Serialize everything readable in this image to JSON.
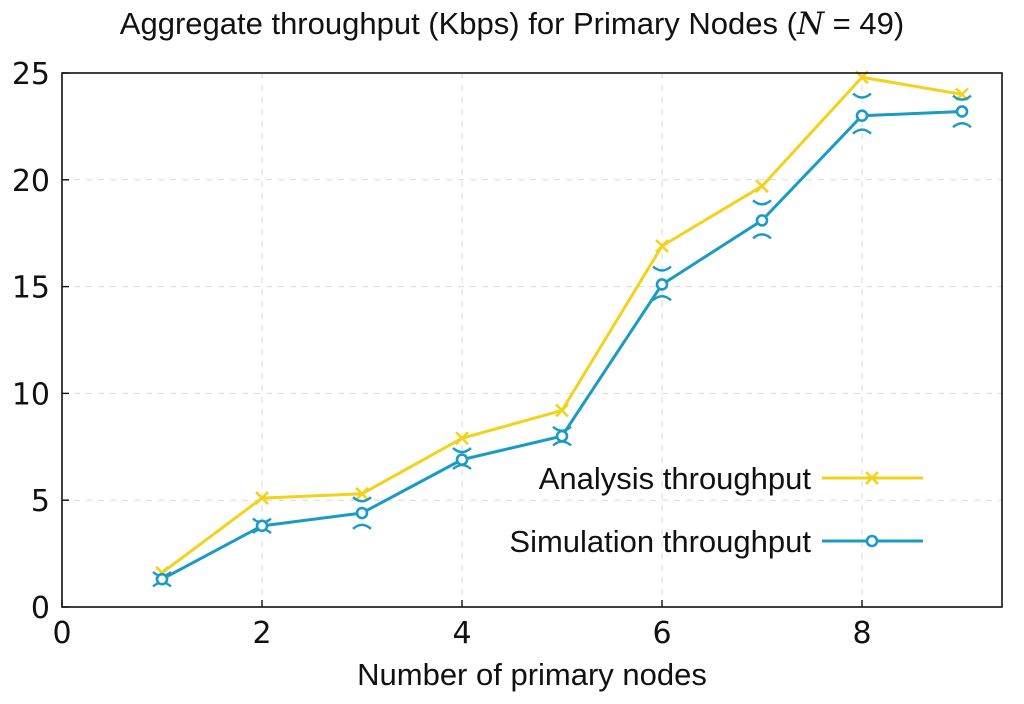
{
  "chart_data": {
    "type": "line",
    "title_prefix": "Aggregate throughput (Kbps) for Primary Nodes (",
    "title_var": "N",
    "title_eq": " = 49)",
    "xlabel": "Number of primary nodes",
    "ylabel": "",
    "xlim": [
      0,
      9.4
    ],
    "ylim": [
      0,
      25
    ],
    "xticks": [
      "0",
      "2",
      "4",
      "6",
      "8"
    ],
    "yticks": [
      "0",
      "5",
      "10",
      "15",
      "20",
      "25"
    ],
    "grid": true,
    "legend_position": "lower-right",
    "series": [
      {
        "name": "Analysis throughput",
        "color": "#f2d21b",
        "marker": "x",
        "x": [
          1,
          2,
          3,
          4,
          5,
          6,
          7,
          8,
          9
        ],
        "y": [
          1.6,
          5.1,
          5.3,
          7.9,
          9.2,
          16.9,
          19.7,
          24.8,
          24.0
        ]
      },
      {
        "name": "Simulation throughput",
        "color": "#1a9bc6",
        "marker": "o",
        "x": [
          1,
          2,
          3,
          4,
          5,
          6,
          7,
          8,
          9
        ],
        "y": [
          1.3,
          3.8,
          4.4,
          6.9,
          8.0,
          15.1,
          18.1,
          23.0,
          23.2
        ],
        "error_low": [
          1.1,
          3.6,
          3.8,
          6.6,
          7.7,
          14.5,
          17.4,
          22.3,
          22.6
        ],
        "error_high": [
          1.5,
          4.0,
          5.0,
          7.3,
          8.3,
          15.8,
          18.9,
          23.9,
          23.8
        ]
      }
    ]
  }
}
